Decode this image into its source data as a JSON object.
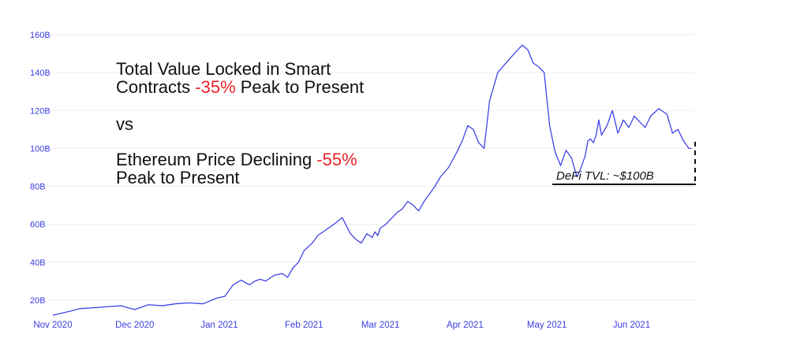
{
  "colors": {
    "line": "#3f44e8",
    "axis_text": "#3a3de0",
    "negative": "#e8232a",
    "text": "#111111"
  },
  "annotations": {
    "title_line1": "Total Value Locked in Smart",
    "title_line2_a": "Contracts ",
    "title_line2_pct": "-35%",
    "title_line2_b": " Peak to Present",
    "vs": "vs",
    "eth_line1_a": "Ethereum Price Declining ",
    "eth_line1_pct": "-55%",
    "eth_line2": "Peak to Present",
    "defi_tvl": "DeFi TVL: ~$100B"
  },
  "chart_data": {
    "type": "line",
    "title": "Total Value Locked in Smart Contracts -35% Peak to Present vs Ethereum Price Declining -55% Peak to Present",
    "xlabel": "",
    "ylabel": "",
    "y_ticks": [
      20,
      40,
      60,
      80,
      100,
      120,
      140,
      160
    ],
    "y_tick_labels": [
      "20B",
      "40B",
      "60B",
      "80B",
      "100B",
      "120B",
      "140B",
      "160B"
    ],
    "ylim": [
      10,
      160
    ],
    "x_ticks": [
      0,
      30,
      61,
      92,
      120,
      151,
      181,
      212
    ],
    "x_tick_labels": [
      "Nov 2020",
      "Dec 2020",
      "Jan 2021",
      "Feb 2021",
      "Mar 2021",
      "Apr 2021",
      "May 2021",
      "Jun 2021"
    ],
    "x_unit": "days since 2020-11-01",
    "xlim": [
      0,
      235
    ],
    "series": [
      {
        "name": "DeFi TVL",
        "x": [
          0,
          3,
          6,
          10,
          15,
          20,
          25,
          30,
          35,
          40,
          45,
          50,
          55,
          60,
          63,
          66,
          69,
          72,
          74,
          76,
          78,
          81,
          84,
          86,
          88,
          90,
          92,
          95,
          97,
          100,
          103,
          106,
          109,
          111,
          113,
          115,
          117,
          118,
          119,
          120,
          122,
          124,
          126,
          128,
          130,
          132,
          134,
          136,
          138,
          140,
          142,
          145,
          148,
          150,
          152,
          154,
          156,
          158,
          160,
          163,
          166,
          169,
          172,
          174,
          176,
          178,
          180,
          182,
          184,
          186,
          188,
          190,
          192,
          193,
          194,
          195,
          196,
          197,
          198,
          199,
          200,
          201,
          203,
          205,
          207,
          209,
          211,
          213,
          215,
          217,
          219,
          222,
          225,
          227,
          229,
          231,
          233,
          234
        ],
        "values": [
          12,
          13,
          14,
          15.5,
          16,
          16.5,
          17,
          15,
          17.5,
          17,
          18,
          18.5,
          18,
          21,
          22,
          28,
          30.5,
          28,
          30,
          31,
          30,
          33,
          34,
          32,
          37,
          40,
          46,
          50,
          54,
          57,
          60,
          63.5,
          55,
          52,
          50,
          55,
          53,
          56,
          54,
          58,
          60,
          63,
          66,
          68,
          72,
          70,
          67,
          72,
          76,
          80,
          85,
          90,
          98,
          104,
          112,
          110,
          103,
          100,
          125,
          140,
          145,
          150,
          154.5,
          152,
          145,
          143,
          140,
          112,
          98,
          91,
          99,
          95,
          85,
          88,
          92,
          96,
          104,
          105,
          103,
          107,
          115,
          107,
          112,
          120,
          108,
          115,
          111,
          117,
          114,
          111,
          117,
          121,
          118,
          108,
          110,
          104,
          100,
          100
        ]
      }
    ]
  }
}
